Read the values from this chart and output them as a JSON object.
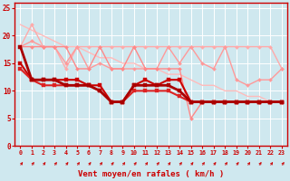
{
  "title": "",
  "xlabel": "Vent moyen/en rafales ( km/h )",
  "ylabel": "",
  "bg_color": "#cfe8ef",
  "grid_color": "#ffffff",
  "xlim": [
    -0.5,
    23.5
  ],
  "ylim": [
    0,
    26
  ],
  "yticks": [
    0,
    5,
    10,
    15,
    20,
    25
  ],
  "xticks": [
    0,
    1,
    2,
    3,
    4,
    5,
    6,
    7,
    8,
    9,
    10,
    11,
    12,
    13,
    14,
    15,
    16,
    17,
    18,
    19,
    20,
    21,
    22,
    23
  ],
  "series": [
    {
      "y": [
        22,
        21,
        20,
        19,
        18,
        18,
        17,
        16,
        16,
        15,
        15,
        14,
        14,
        13,
        13,
        12,
        11,
        11,
        10,
        10,
        9,
        9,
        8,
        8
      ],
      "color": "#ffbbbb",
      "lw": 1.0,
      "marker": null,
      "ms": 0,
      "zorder": 2
    },
    {
      "y": [
        18,
        22,
        18,
        18,
        14,
        18,
        18,
        18,
        18,
        18,
        18,
        18,
        18,
        18,
        18,
        18,
        18,
        18,
        18,
        18,
        18,
        18,
        18,
        14
      ],
      "color": "#ffaaaa",
      "lw": 1.0,
      "marker": "D",
      "ms": 2.0,
      "zorder": 3
    },
    {
      "y": [
        18,
        19,
        18,
        18,
        15,
        18,
        14,
        15,
        14,
        14,
        14,
        14,
        14,
        18,
        15,
        18,
        15,
        14,
        18,
        12,
        11,
        12,
        12,
        14
      ],
      "color": "#ff9999",
      "lw": 1.0,
      "marker": "D",
      "ms": 2.0,
      "zorder": 3
    },
    {
      "y": [
        18,
        18,
        18,
        18,
        18,
        14,
        14,
        18,
        14,
        14,
        18,
        14,
        14,
        14,
        14,
        5,
        8,
        8,
        8,
        8,
        8,
        8,
        8,
        8
      ],
      "color": "#ff8888",
      "lw": 1.0,
      "marker": "D",
      "ms": 2.0,
      "zorder": 3
    },
    {
      "y": [
        15,
        12,
        12,
        12,
        12,
        12,
        11,
        11,
        8,
        8,
        11,
        12,
        11,
        12,
        12,
        8,
        8,
        8,
        8,
        8,
        8,
        8,
        8,
        8
      ],
      "color": "#cc0000",
      "lw": 1.5,
      "marker": "s",
      "ms": 2.5,
      "zorder": 5
    },
    {
      "y": [
        14,
        12,
        11,
        11,
        11,
        11,
        11,
        10,
        8,
        8,
        10,
        10,
        10,
        10,
        9,
        8,
        8,
        8,
        8,
        8,
        8,
        8,
        8,
        8
      ],
      "color": "#dd2222",
      "lw": 1.5,
      "marker": "s",
      "ms": 2.5,
      "zorder": 5
    },
    {
      "y": [
        18,
        12,
        12,
        12,
        11,
        11,
        11,
        10,
        8,
        8,
        11,
        11,
        11,
        11,
        10,
        8,
        8,
        8,
        8,
        8,
        8,
        8,
        8,
        8
      ],
      "color": "#aa0000",
      "lw": 2.0,
      "marker": "s",
      "ms": 2.5,
      "zorder": 6
    }
  ],
  "axis_color": "#cc0000",
  "tick_color": "#cc0000",
  "label_color": "#cc0000",
  "arrow_color": "#cc0000"
}
